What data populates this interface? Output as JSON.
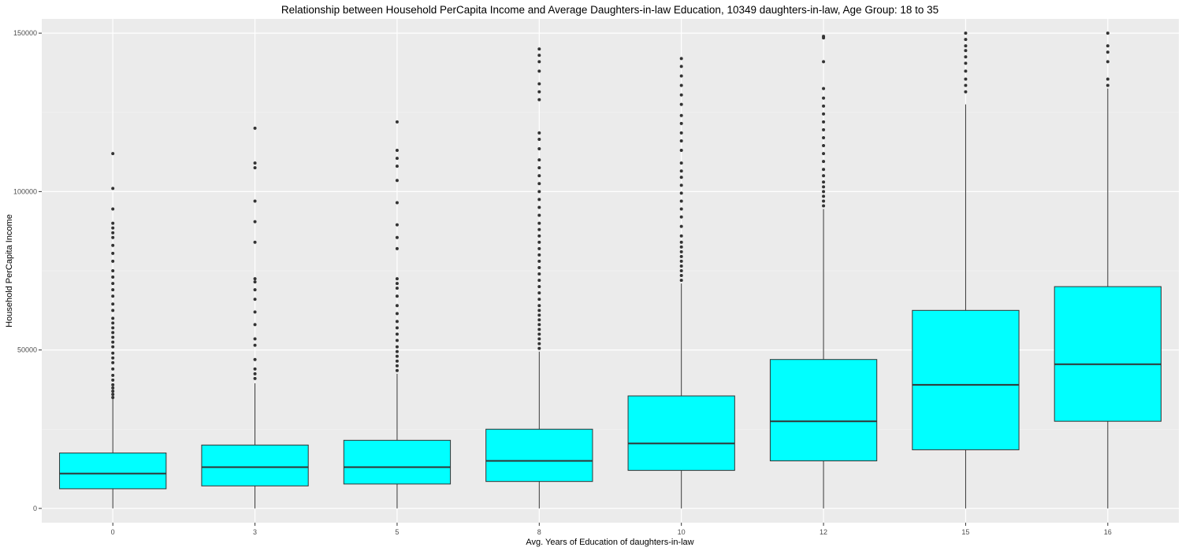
{
  "chart_data": {
    "type": "boxplot",
    "title": "Relationship between Household PerCapita Income and Average Daughters-in-law Education,  10349 daughters-in-law, Age Group: 18 to 35",
    "xlabel": "Avg. Years of Education of daughters-in-law",
    "ylabel": "Household PerCapita Income",
    "categories": [
      "0",
      "3",
      "5",
      "8",
      "10",
      "12",
      "15",
      "16"
    ],
    "y_ticks": [
      0,
      50000,
      100000,
      150000
    ],
    "y_tick_labels": [
      "0",
      "50000",
      "100000",
      "150000"
    ],
    "ylim": [
      -4500,
      154500
    ],
    "grid": true,
    "box_fill": "#00ffff",
    "panel_background": "#ebebeb",
    "series": [
      {
        "category": "0",
        "whisker_low": 0,
        "q1": 6200,
        "median": 11000,
        "q3": 17500,
        "whisker_high": 34500,
        "outliers": [
          35000,
          36000,
          37000,
          38000,
          39000,
          40500,
          42000,
          44000,
          46000,
          47500,
          49000,
          51000,
          52500,
          54000,
          55500,
          57000,
          58500,
          60000,
          62500,
          64500,
          67000,
          69000,
          71000,
          73000,
          75000,
          78000,
          80500,
          83000,
          85500,
          87000,
          88500,
          90000,
          94500,
          101000,
          112000
        ]
      },
      {
        "category": "3",
        "whisker_low": 0,
        "q1": 7100,
        "median": 13000,
        "q3": 20000,
        "whisker_high": 39500,
        "outliers": [
          41000,
          42500,
          44000,
          47000,
          51500,
          53500,
          58000,
          62000,
          66000,
          69000,
          71500,
          72500,
          84000,
          90500,
          97000,
          107500,
          109000,
          120000
        ]
      },
      {
        "category": "5",
        "whisker_low": 0,
        "q1": 7700,
        "median": 13000,
        "q3": 21500,
        "whisker_high": 42500,
        "outliers": [
          43500,
          45000,
          46500,
          48000,
          49500,
          51000,
          53000,
          55000,
          57000,
          59000,
          61500,
          64000,
          67000,
          69500,
          71000,
          72500,
          82000,
          85500,
          89500,
          96500,
          103500,
          108000,
          110500,
          113000,
          122000
        ]
      },
      {
        "category": "8",
        "whisker_low": 0,
        "q1": 8500,
        "median": 15000,
        "q3": 25000,
        "whisker_high": 49500,
        "outliers": [
          50500,
          52000,
          53500,
          55000,
          56500,
          58000,
          59500,
          61000,
          62500,
          64000,
          66000,
          68000,
          70000,
          72000,
          74000,
          76000,
          78000,
          80000,
          82000,
          84000,
          86000,
          88000,
          90000,
          92500,
          95000,
          97500,
          100000,
          102500,
          105000,
          107500,
          110000,
          113500,
          116500,
          118500,
          129000,
          131500,
          134000,
          138000,
          141000,
          143000,
          145000
        ]
      },
      {
        "category": "10",
        "whisker_low": 0,
        "q1": 12000,
        "median": 20500,
        "q3": 35500,
        "whisker_high": 71000,
        "outliers": [
          72000,
          73500,
          75000,
          76500,
          78000,
          79500,
          81000,
          82500,
          84000,
          86000,
          89000,
          92000,
          94500,
          97000,
          99500,
          102000,
          104500,
          106500,
          109000,
          113000,
          116000,
          118500,
          121500,
          124000,
          127500,
          130500,
          133500,
          136500,
          139500,
          142000
        ]
      },
      {
        "category": "12",
        "whisker_low": 0,
        "q1": 15000,
        "median": 27500,
        "q3": 47000,
        "whisker_high": 94500,
        "outliers": [
          95500,
          97000,
          98500,
          100000,
          101500,
          103000,
          105000,
          107000,
          109500,
          112000,
          114500,
          117000,
          119500,
          122000,
          124500,
          127000,
          129500,
          132500,
          141000,
          148500,
          149000
        ]
      },
      {
        "category": "15",
        "whisker_low": 0,
        "q1": 18500,
        "median": 39000,
        "q3": 62500,
        "whisker_high": 127500,
        "outliers": [
          131500,
          133500,
          135500,
          138000,
          140500,
          142500,
          144500,
          146000,
          148000,
          150000
        ]
      },
      {
        "category": "16",
        "whisker_low": 0,
        "q1": 27500,
        "median": 45500,
        "q3": 70000,
        "whisker_high": 132500,
        "outliers": [
          133500,
          135500,
          141000,
          144000,
          146000,
          150000
        ]
      }
    ]
  }
}
